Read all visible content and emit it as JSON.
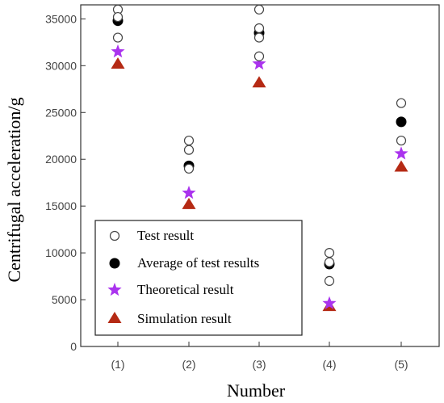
{
  "chart_data": {
    "type": "scatter",
    "title": "",
    "xlabel": "Number",
    "ylabel": "Centrifugal acceleration/g",
    "categories": [
      "(1)",
      "(2)",
      "(3)",
      "(4)",
      "(5)"
    ],
    "ylim": [
      0,
      36500
    ],
    "yticks": [
      0,
      5000,
      10000,
      15000,
      20000,
      25000,
      30000,
      35000
    ],
    "grid": false,
    "legend_position": "bottom-left",
    "series": [
      {
        "name": "Test result",
        "marker": "open-circle",
        "color": "#444444",
        "points": [
          {
            "x": "(1)",
            "y": 36000
          },
          {
            "x": "(1)",
            "y": 35200
          },
          {
            "x": "(1)",
            "y": 33000
          },
          {
            "x": "(2)",
            "y": 22000
          },
          {
            "x": "(2)",
            "y": 21000
          },
          {
            "x": "(2)",
            "y": 19000
          },
          {
            "x": "(3)",
            "y": 36000
          },
          {
            "x": "(3)",
            "y": 34000
          },
          {
            "x": "(3)",
            "y": 33000
          },
          {
            "x": "(3)",
            "y": 31000
          },
          {
            "x": "(4)",
            "y": 10000
          },
          {
            "x": "(4)",
            "y": 9000
          },
          {
            "x": "(4)",
            "y": 7000
          },
          {
            "x": "(5)",
            "y": 26000
          },
          {
            "x": "(5)",
            "y": 22000
          }
        ]
      },
      {
        "name": "Average of test results",
        "marker": "filled-circle",
        "color": "#000000",
        "points": [
          {
            "x": "(1)",
            "y": 34800
          },
          {
            "x": "(2)",
            "y": 19300
          },
          {
            "x": "(3)",
            "y": 33500
          },
          {
            "x": "(4)",
            "y": 8800
          },
          {
            "x": "(5)",
            "y": 24000
          }
        ]
      },
      {
        "name": "Theoretical result",
        "marker": "star",
        "color": "#aa33ee",
        "points": [
          {
            "x": "(1)",
            "y": 31500
          },
          {
            "x": "(2)",
            "y": 16400
          },
          {
            "x": "(3)",
            "y": 30200
          },
          {
            "x": "(4)",
            "y": 4600
          },
          {
            "x": "(5)",
            "y": 20600
          }
        ]
      },
      {
        "name": "Simulation result",
        "marker": "triangle",
        "color": "#b52a14",
        "points": [
          {
            "x": "(1)",
            "y": 30200
          },
          {
            "x": "(2)",
            "y": 15200
          },
          {
            "x": "(3)",
            "y": 28200
          },
          {
            "x": "(4)",
            "y": 4300
          },
          {
            "x": "(5)",
            "y": 19200
          }
        ]
      }
    ],
    "legend_entries": [
      {
        "label": "Test result",
        "marker": "open-circle"
      },
      {
        "label": "Average  of  test results",
        "marker": "filled-circle"
      },
      {
        "label": "Theoretical result",
        "marker": "star"
      },
      {
        "label": "Simulation  result",
        "marker": "triangle"
      }
    ]
  }
}
